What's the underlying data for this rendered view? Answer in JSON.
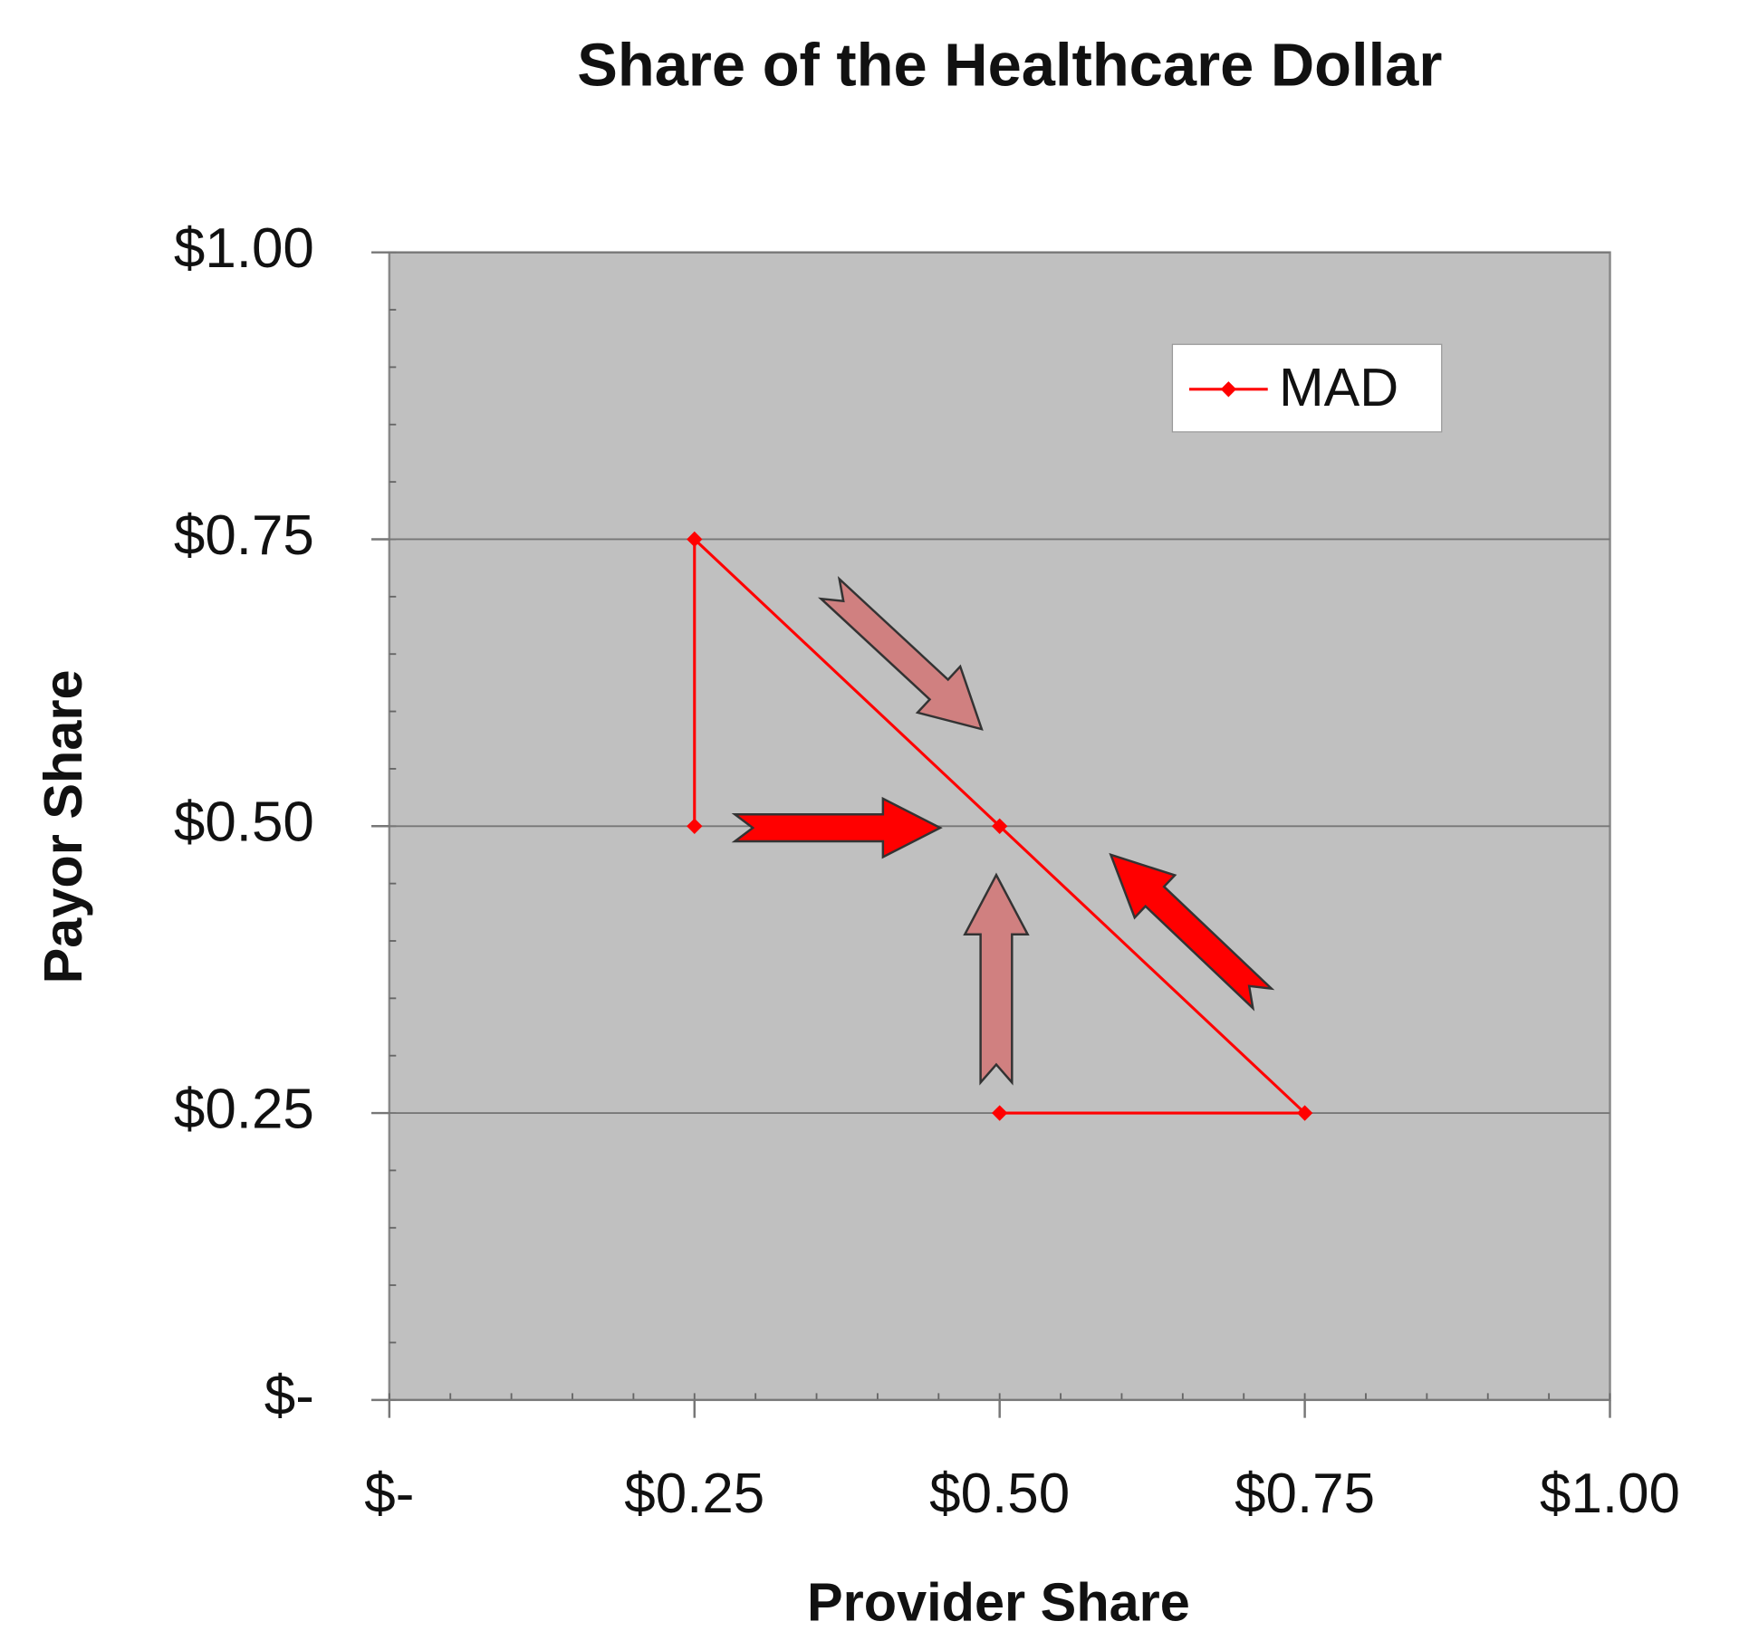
{
  "chart_data": {
    "type": "line",
    "title": "Share of the Healthcare Dollar",
    "x_label": "Provider Share",
    "y_label": "Payor Share",
    "series": [
      {
        "name": "MAD",
        "color": "#ff0000",
        "x": [
          0.25,
          0.25,
          0.5,
          0.75,
          0.5
        ],
        "values": [
          0.5,
          0.75,
          0.5,
          0.25,
          0.25
        ]
      }
    ],
    "xlim": [
      0,
      1
    ],
    "ylim": [
      0,
      1
    ],
    "xticks": [
      {
        "value": 0,
        "label": "$-"
      },
      {
        "value": 0.25,
        "label": "$0.25"
      },
      {
        "value": 0.5,
        "label": "$0.50"
      },
      {
        "value": 0.75,
        "label": "$0.75"
      },
      {
        "value": 1,
        "label": "$1.00"
      }
    ],
    "yticks": [
      {
        "value": 0,
        "label": "$-"
      },
      {
        "value": 0.25,
        "label": "$0.25"
      },
      {
        "value": 0.5,
        "label": "$0.50"
      },
      {
        "value": 0.75,
        "label": "$0.75"
      },
      {
        "value": 1,
        "label": "$1.00"
      }
    ],
    "minor_tick_step": 0.05,
    "grid": true,
    "legend": "upper right"
  }
}
